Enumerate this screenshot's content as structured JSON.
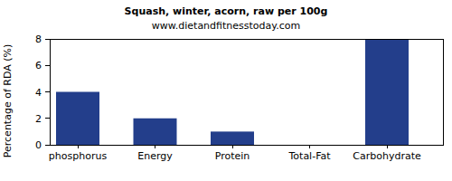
{
  "chart_data": {
    "type": "bar",
    "title": "Squash, winter, acorn, raw per 100g",
    "subtitle": "www.dietandfitnesstoday.com",
    "y_label": "Percentage of RDA (%)",
    "categories": [
      "phosphorus",
      "Energy",
      "Protein",
      "Total-Fat",
      "Carbohydrate"
    ],
    "values": [
      4,
      2,
      1,
      0,
      8
    ],
    "color": "#233e8b",
    "ylim": [
      0,
      8
    ],
    "yticks": [
      0,
      2,
      4,
      6,
      8
    ],
    "grid": false
  }
}
